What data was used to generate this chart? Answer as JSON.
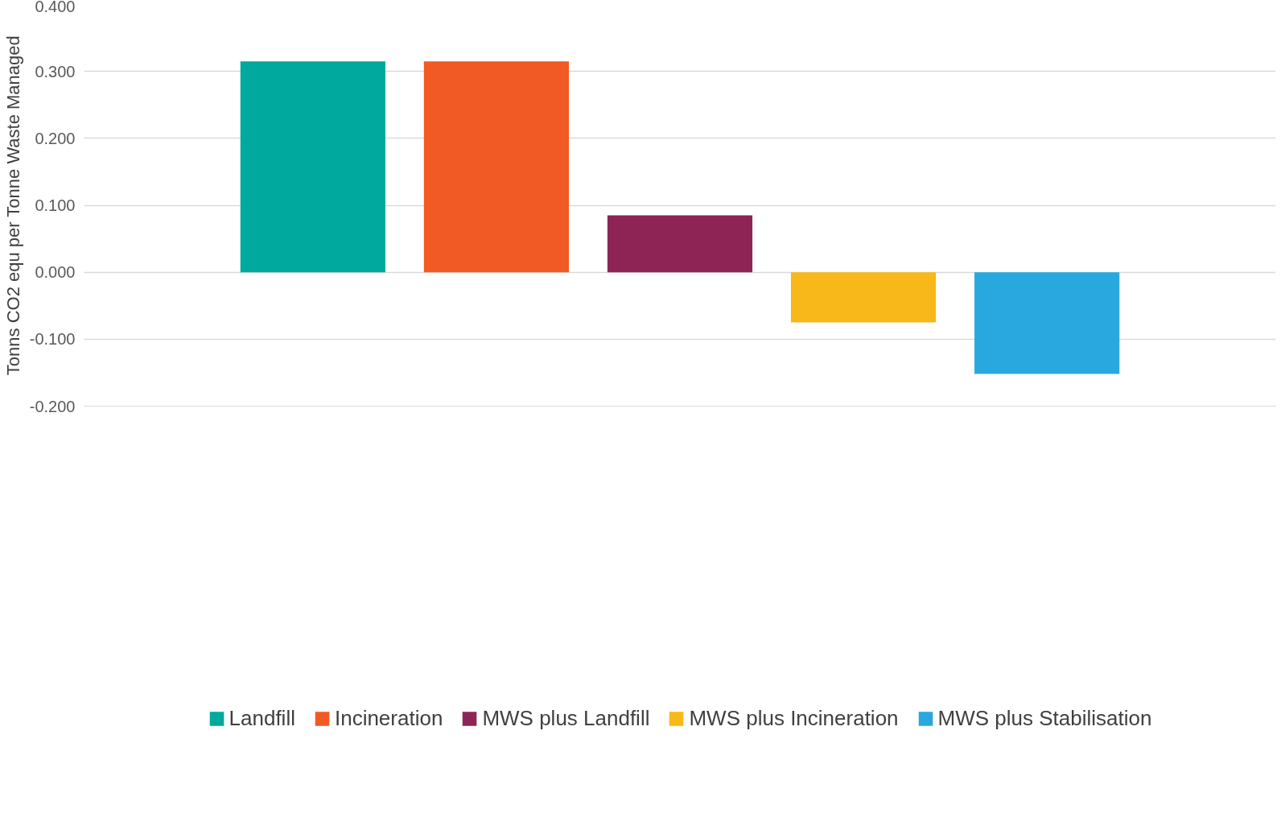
{
  "chart_data": {
    "type": "bar",
    "ylabel": "Tonns CO2 equ per Tonne Waste Managed",
    "categories": [
      null
    ],
    "series": [
      {
        "name": "Landfill",
        "color": "#00a99d",
        "values": [
          0.315
        ]
      },
      {
        "name": "Incineration",
        "color": "#f15a24",
        "values": [
          0.315
        ]
      },
      {
        "name": "MWS plus Landfill",
        "color": "#8e2455",
        "values": [
          0.085
        ]
      },
      {
        "name": "MWS plus Incineration",
        "color": "#f8b819",
        "values": [
          -0.075
        ]
      },
      {
        "name": "MWS plus Stabilisation",
        "color": "#29a8e0",
        "values": [
          -0.152
        ]
      }
    ],
    "ylim": [
      -0.2,
      0.4
    ],
    "yticks": [
      {
        "value": -0.2,
        "label": "-0.200"
      },
      {
        "value": -0.1,
        "label": "-0.100"
      },
      {
        "value": 0,
        "label": "0.000"
      },
      {
        "value": 0.1,
        "label": "0.100"
      },
      {
        "value": 0.2,
        "label": "0.200"
      },
      {
        "value": 0.3,
        "label": "0.300"
      },
      {
        "value": 0.4,
        "label": "0.400"
      }
    ],
    "grid": "y",
    "legend": "bottom"
  }
}
